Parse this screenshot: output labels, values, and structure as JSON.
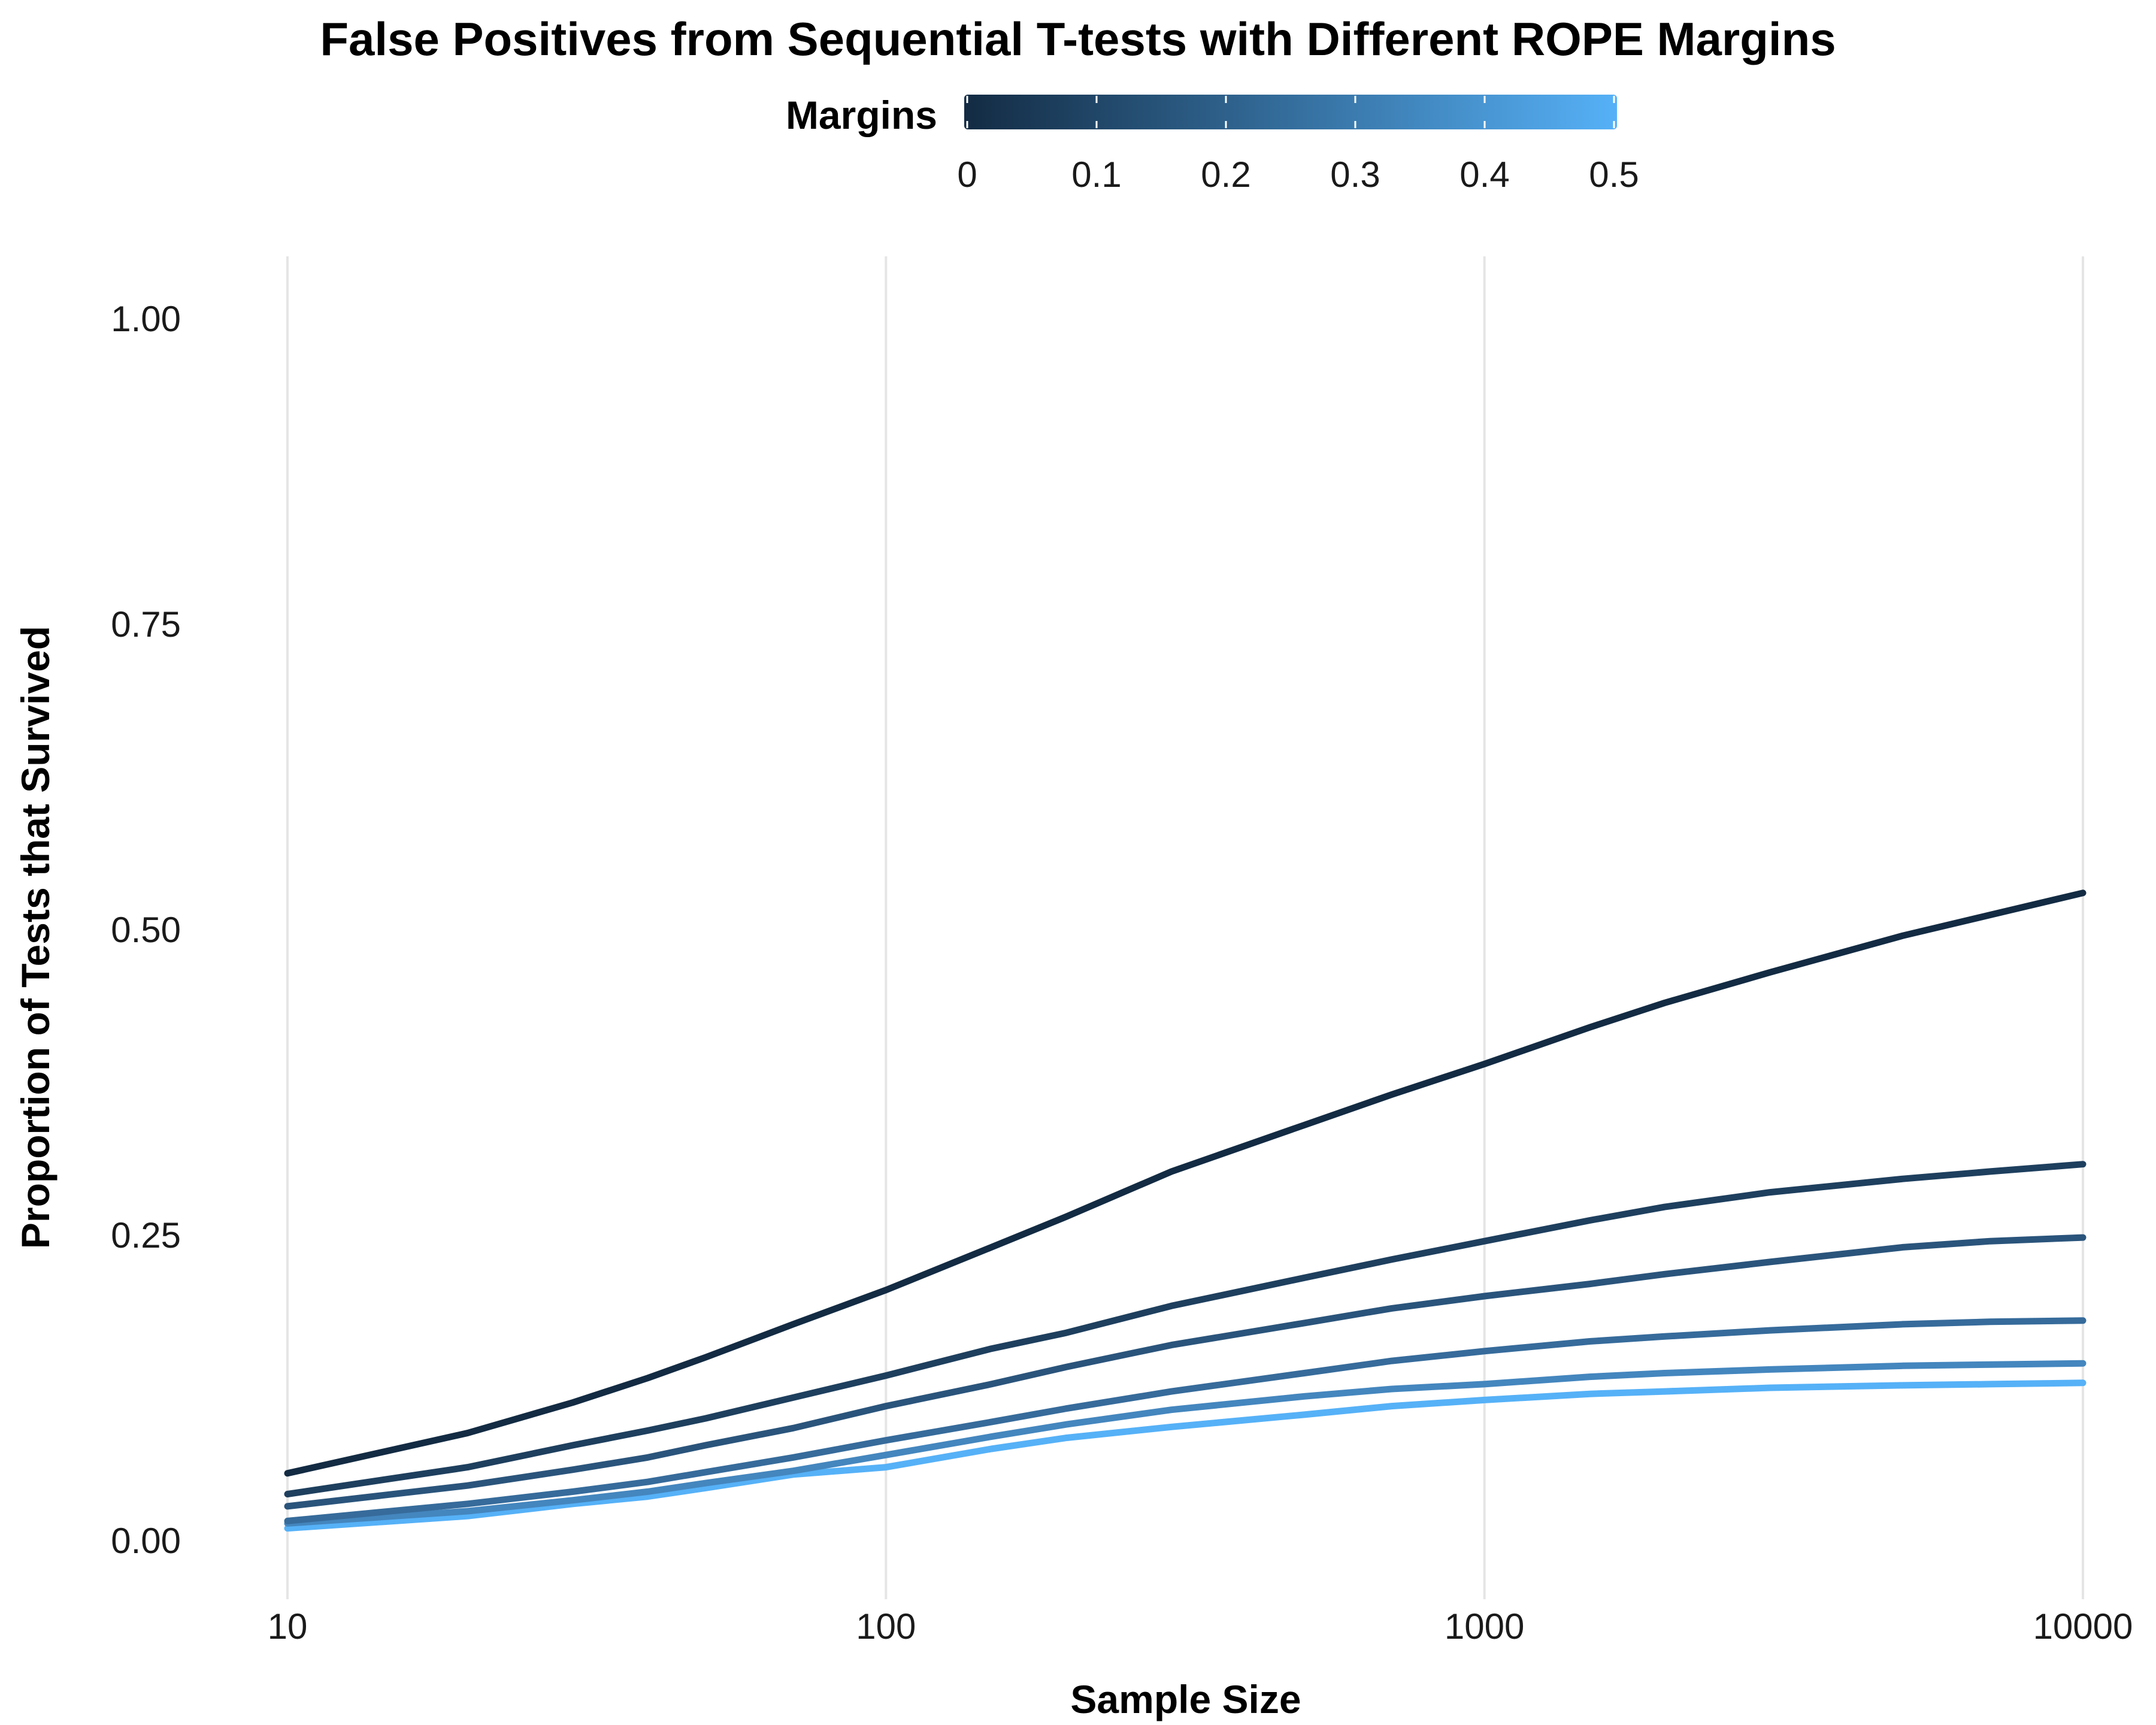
{
  "chart_data": {
    "type": "line",
    "title": "False Positives from Sequential T-tests with Different ROPE Margins",
    "xlabel": "Sample Size",
    "ylabel": "Proportion of Tests that Survived",
    "x_scale": "log10",
    "xlim": [
      10,
      10000
    ],
    "ylim": [
      -0.05,
      1.05
    ],
    "x_ticks": [
      "10",
      "100",
      "1000",
      "10000"
    ],
    "y_ticks": [
      "0.00",
      "0.25",
      "0.50",
      "0.75",
      "1.00"
    ],
    "grid": "vertical major only",
    "legend": {
      "title": "Margins",
      "position": "top",
      "type": "continuous colorbar",
      "ticks": [
        "0",
        "0.1",
        "0.2",
        "0.3",
        "0.4",
        "0.5"
      ],
      "range": [
        0,
        0.5
      ],
      "low_color": "#132B43",
      "high_color": "#56B1F7"
    },
    "x": [
      10,
      20,
      30,
      40,
      50,
      70,
      100,
      150,
      200,
      300,
      500,
      700,
      1000,
      1500,
      2000,
      3000,
      5000,
      7000,
      10000
    ],
    "series": [
      {
        "margin": 0.0,
        "color": "#132B43",
        "values": [
          0.055,
          0.088,
          0.113,
          0.133,
          0.15,
          0.177,
          0.205,
          0.24,
          0.265,
          0.302,
          0.34,
          0.365,
          0.39,
          0.42,
          0.44,
          0.465,
          0.495,
          0.512,
          0.53
        ]
      },
      {
        "margin": 0.1,
        "color": "#1E3F5E",
        "values": [
          0.038,
          0.06,
          0.078,
          0.09,
          0.1,
          0.117,
          0.135,
          0.157,
          0.17,
          0.192,
          0.215,
          0.23,
          0.245,
          0.262,
          0.273,
          0.285,
          0.296,
          0.302,
          0.308
        ]
      },
      {
        "margin": 0.2,
        "color": "#2A547B",
        "values": [
          0.028,
          0.045,
          0.058,
          0.068,
          0.078,
          0.092,
          0.11,
          0.128,
          0.142,
          0.16,
          0.178,
          0.19,
          0.2,
          0.21,
          0.218,
          0.228,
          0.24,
          0.245,
          0.248
        ]
      },
      {
        "margin": 0.3,
        "color": "#366B9B",
        "values": [
          0.016,
          0.03,
          0.04,
          0.048,
          0.056,
          0.068,
          0.082,
          0.097,
          0.108,
          0.122,
          0.137,
          0.147,
          0.155,
          0.163,
          0.167,
          0.172,
          0.177,
          0.179,
          0.18
        ]
      },
      {
        "margin": 0.4,
        "color": "#4486BE",
        "values": [
          0.014,
          0.024,
          0.033,
          0.04,
          0.047,
          0.057,
          0.07,
          0.085,
          0.095,
          0.107,
          0.118,
          0.124,
          0.128,
          0.134,
          0.137,
          0.14,
          0.143,
          0.144,
          0.145
        ]
      },
      {
        "margin": 0.5,
        "color": "#56B1F7",
        "values": [
          0.01,
          0.02,
          0.03,
          0.036,
          0.043,
          0.054,
          0.06,
          0.075,
          0.084,
          0.093,
          0.103,
          0.11,
          0.115,
          0.12,
          0.122,
          0.125,
          0.127,
          0.128,
          0.129
        ]
      }
    ]
  }
}
